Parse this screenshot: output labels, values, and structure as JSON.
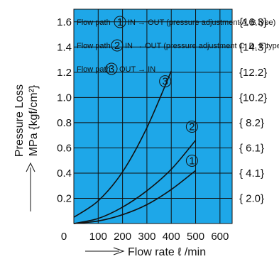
{
  "chart_data": {
    "type": "line",
    "background": "#1ea7e8",
    "xlabel": "Flow rate  ℓ /min",
    "ylabel": "Pressure Loss",
    "ylabel2": "MPa {kgf/cm²}",
    "xlim": [
      0,
      650
    ],
    "ylim": [
      0,
      1.7
    ],
    "x_ticks": [
      "0",
      "100",
      "200",
      "300",
      "400",
      "500",
      "600"
    ],
    "x_tick_values": [
      0,
      100,
      200,
      300,
      400,
      500,
      600
    ],
    "y_ticks": [
      "0.2",
      "0.4",
      "0.6",
      "0.8",
      "1.0",
      "1.2",
      "1.4",
      "1.6"
    ],
    "y_tick_values": [
      0.2,
      0.4,
      0.6,
      0.8,
      1.0,
      1.2,
      1.4,
      1.6
    ],
    "y2_ticks": [
      "{ 2.0}",
      "{ 4.1}",
      "{ 6.1}",
      "{ 8.2}",
      "{10.2}",
      "{12.2}",
      "{14.3}",
      "{16.3}"
    ],
    "grid": true,
    "legend": [
      {
        "marker": "1",
        "before": "Flow path",
        "after": "IN → OUT (pressure adjustment A, B type)"
      },
      {
        "marker": "2",
        "before": "Flow path",
        "after": "IN → OUT (pressure adjustment C, D, E type)"
      },
      {
        "marker": "3",
        "before": "Flow path",
        "after": "OUT → IN"
      }
    ],
    "series": [
      {
        "label": "1",
        "x": [
          0,
          100,
          200,
          300,
          400,
          500
        ],
        "y": [
          0.0,
          0.02,
          0.07,
          0.15,
          0.27,
          0.42
        ]
      },
      {
        "label": "2",
        "x": [
          0,
          100,
          200,
          300,
          400,
          500
        ],
        "y": [
          0.0,
          0.04,
          0.13,
          0.26,
          0.43,
          0.66
        ]
      },
      {
        "label": "3",
        "x": [
          0,
          100,
          200,
          300,
          400
        ],
        "y": [
          0.05,
          0.18,
          0.41,
          0.76,
          1.21
        ]
      }
    ]
  }
}
